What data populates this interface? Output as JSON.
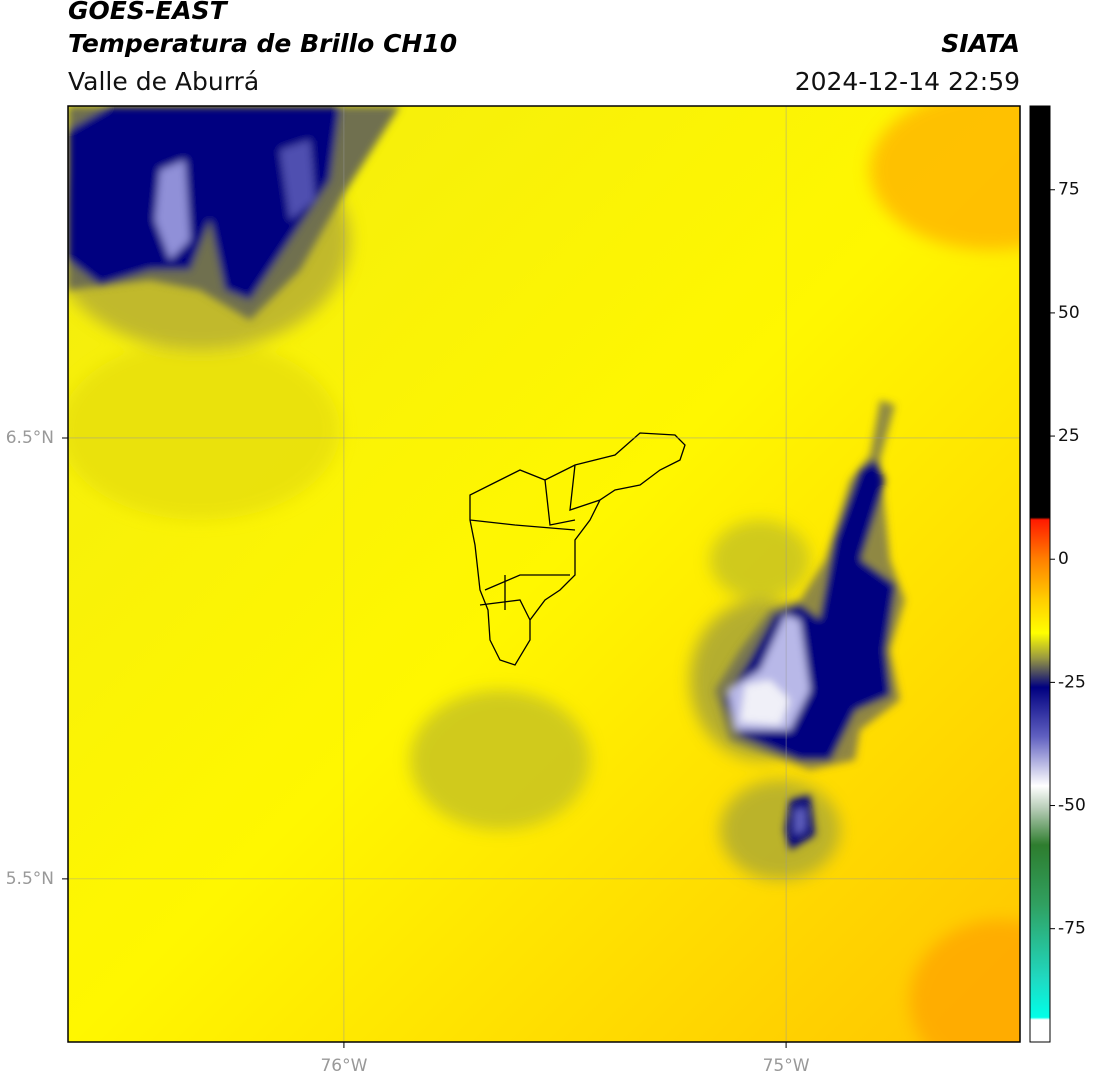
{
  "map": {
    "title": "GOES-EAST",
    "subtitle": "Temperatura de Brillo CH10",
    "region": "Valle de Aburrá",
    "source": "SIATA",
    "datetime": "2024-12-14 22:59",
    "xlim": [
      -76.624,
      -74.471
    ],
    "ylim": [
      5.13,
      7.253
    ],
    "xticks": [
      {
        "value": -76,
        "label": "76°W"
      },
      {
        "value": -75,
        "label": "75°W"
      }
    ],
    "yticks": [
      {
        "value": 6.5,
        "label": "6.5°N"
      },
      {
        "value": 5.5,
        "label": "5.5°N"
      }
    ],
    "colorbar": {
      "lim": [
        -98,
        92
      ],
      "ticks": [
        75,
        50,
        25,
        0,
        -25,
        -50,
        -75
      ],
      "stops": [
        {
          "value": 92,
          "color": "#000000"
        },
        {
          "value": 8.5,
          "color": "#000000"
        },
        {
          "value": 8,
          "color": "#ff1a00"
        },
        {
          "value": 0,
          "color": "#ff8000"
        },
        {
          "value": -8,
          "color": "#ffcc00"
        },
        {
          "value": -15,
          "color": "#ffff00"
        },
        {
          "value": -20,
          "color": "#9a9a40"
        },
        {
          "value": -26,
          "color": "#000080"
        },
        {
          "value": -36,
          "color": "#6060c0"
        },
        {
          "value": -46,
          "color": "#ffffff"
        },
        {
          "value": -51,
          "color": "#b0c8b0"
        },
        {
          "value": -58,
          "color": "#2e7d2e"
        },
        {
          "value": -70,
          "color": "#30a060"
        },
        {
          "value": -85,
          "color": "#20d8c0"
        },
        {
          "value": -93,
          "color": "#00ffe8"
        },
        {
          "value": -93.5,
          "color": "#ffffff"
        },
        {
          "value": -98,
          "color": "#ffffff"
        }
      ]
    }
  }
}
